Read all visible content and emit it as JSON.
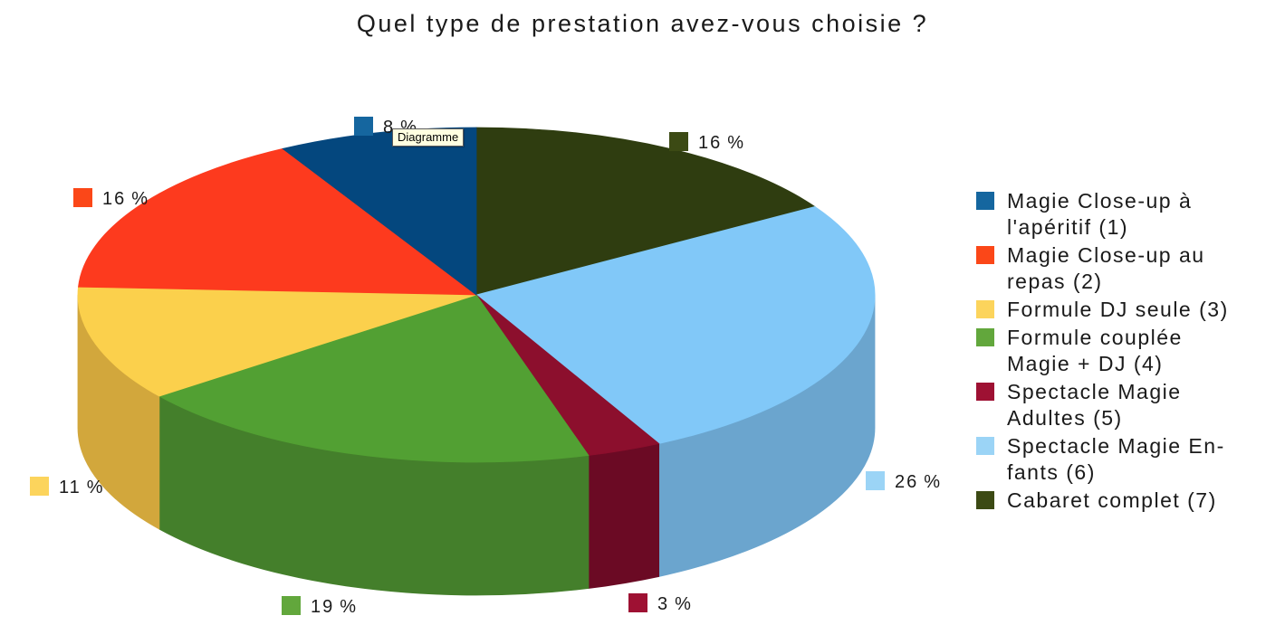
{
  "title": "Quel type de prestation avez-vous choisie ?",
  "tooltip": "Diagramme",
  "chart_data": {
    "type": "pie",
    "style": "3d",
    "title": "Quel type de prestation avez-vous choisie ?",
    "legend_position": "right",
    "grid": false,
    "unit": "%",
    "displayed_total_pct": 99,
    "start": "12-o-clock, last legend entry first, clockwise",
    "categories": [
      "Magie Close-up à l'apéritif (1)",
      "Magie Close-up au repas (2)",
      "Formule DJ seule (3)",
      "Formule couplée Magie + DJ (4)",
      "Spectacle Magie Adultes (5)",
      "Spectacle Magie Enfants (6)",
      "Cabaret complet (7)"
    ],
    "values": [
      8,
      16,
      11,
      19,
      3,
      26,
      16
    ],
    "series": [
      {
        "label": "Magie Close-up à l'apéritif (1)",
        "legend_lines": [
          "Magie Close-up à",
          "l'apéritif (1)"
        ],
        "value_pct": 8,
        "value_display": "8 %",
        "top_color": "#04477E",
        "side_color": "#033663",
        "swatch_color": "#15669F"
      },
      {
        "label": "Magie Close-up au repas (2)",
        "legend_lines": [
          "Magie Close-up au",
          "repas (2)"
        ],
        "value_pct": 16,
        "value_display": "16 %",
        "top_color": "#FD3A1E",
        "side_color": "#D22F15",
        "swatch_color": "#FB4718"
      },
      {
        "label": "Formule DJ seule (3)",
        "legend_lines": [
          "Formule DJ seule (3)"
        ],
        "value_pct": 11,
        "value_display": "11 %",
        "top_color": "#FBD04C",
        "side_color": "#D2A73C",
        "swatch_color": "#FCD45C"
      },
      {
        "label": "Formule couplée Magie + DJ (4)",
        "legend_lines": [
          "Formule couplée",
          "Magie + DJ (4)"
        ],
        "value_pct": 19,
        "value_display": "19 %",
        "top_color": "#52A033",
        "side_color": "#447F2B",
        "swatch_color": "#62A73C"
      },
      {
        "label": "Spectacle Magie Adultes (5)",
        "legend_lines": [
          "Spectacle Magie",
          "Adultes (5)"
        ],
        "value_pct": 3,
        "value_display": "3 %",
        "top_color": "#8C0F2D",
        "side_color": "#6B0A24",
        "swatch_color": "#9E1133"
      },
      {
        "label": "Spectacle Magie Enfants (6)",
        "legend_lines": [
          "Spectacle Magie En-",
          "fants (6)"
        ],
        "value_pct": 26,
        "value_display": "26 %",
        "top_color": "#81C8F8",
        "side_color": "#6BA5CE",
        "swatch_color": "#9BD4F6"
      },
      {
        "label": "Cabaret complet (7)",
        "legend_lines": [
          "Cabaret complet (7)"
        ],
        "value_pct": 16,
        "value_display": "16 %",
        "top_color": "#2F3D10",
        "side_color": "#27330D",
        "swatch_color": "#3C4A14"
      }
    ]
  }
}
